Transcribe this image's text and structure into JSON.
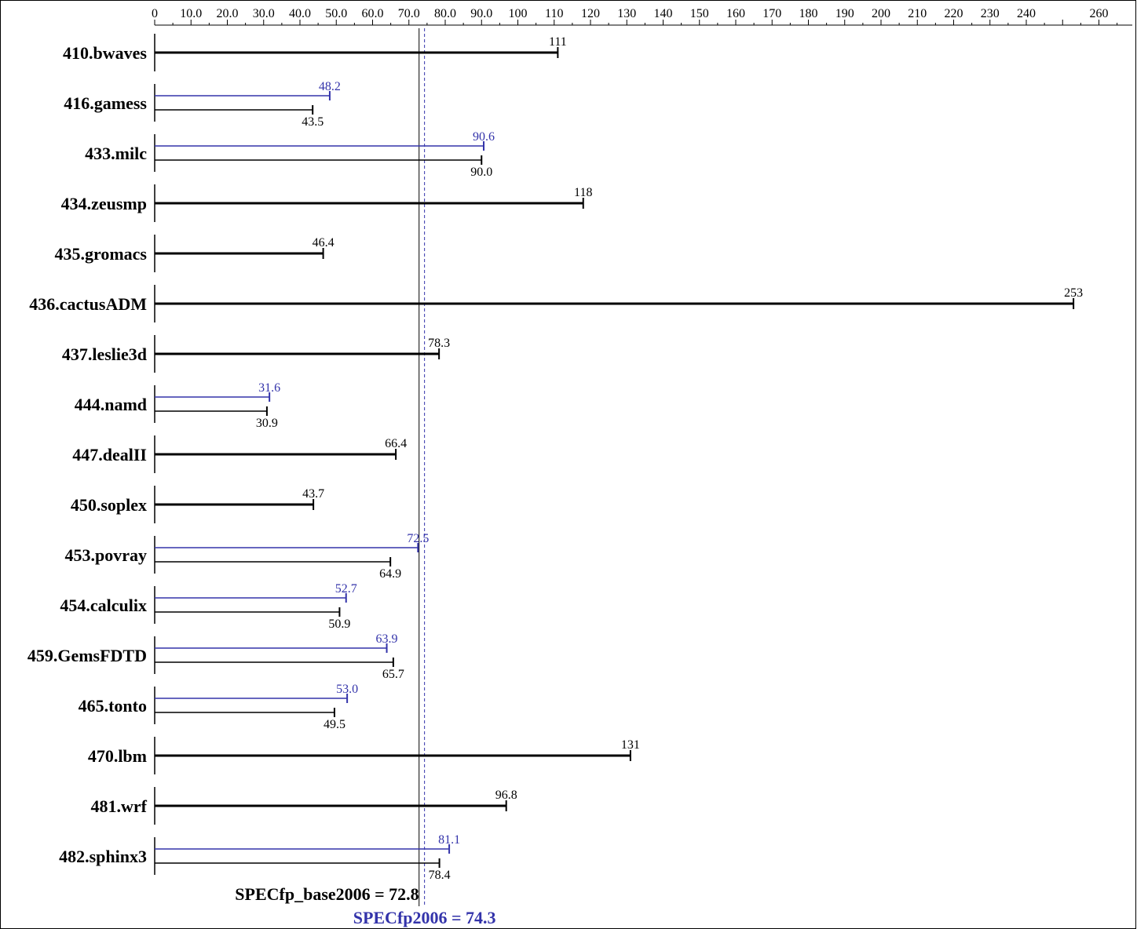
{
  "chart_data": {
    "type": "bar",
    "orientation": "horizontal",
    "x_ticks": [
      "0",
      "10.0",
      "20.0",
      "30.0",
      "40.0",
      "50.0",
      "60.0",
      "70.0",
      "80.0",
      "90.0",
      "100",
      "110",
      "120",
      "130",
      "140",
      "150",
      "160",
      "170",
      "180",
      "190",
      "200",
      "210",
      "220",
      "230",
      "240",
      "260"
    ],
    "xlim": [
      0,
      260
    ],
    "categories": [
      "410.bwaves",
      "416.gamess",
      "433.milc",
      "434.zeusmp",
      "435.gromacs",
      "436.cactusADM",
      "437.leslie3d",
      "444.namd",
      "447.dealII",
      "450.soplex",
      "453.povray",
      "454.calculix",
      "459.GemsFDTD",
      "465.tonto",
      "470.lbm",
      "481.wrf",
      "482.sphinx3"
    ],
    "series": [
      {
        "role": "peak",
        "color": "#3333aa",
        "values": [
          null,
          48.2,
          90.6,
          null,
          null,
          null,
          null,
          31.6,
          null,
          null,
          72.5,
          52.7,
          63.9,
          53.0,
          null,
          null,
          81.1
        ],
        "labels": [
          "",
          "48.2",
          "90.6",
          "",
          "",
          "",
          "",
          "31.6",
          "",
          "",
          "72.5",
          "52.7",
          "63.9",
          "53.0",
          "",
          "",
          "81.1"
        ]
      },
      {
        "role": "base",
        "color": "#000000",
        "values": [
          111,
          43.5,
          90.0,
          118,
          46.4,
          253,
          78.3,
          30.9,
          66.4,
          43.7,
          64.9,
          50.9,
          65.7,
          49.5,
          131,
          96.8,
          78.4
        ],
        "labels": [
          "111",
          "43.5",
          "90.0",
          "118",
          "46.4",
          "253",
          "78.3",
          "30.9",
          "66.4",
          "43.7",
          "64.9",
          "50.9",
          "65.7",
          "49.5",
          "131",
          "96.8",
          "78.4"
        ]
      }
    ],
    "reference_lines": [
      {
        "name": "base",
        "value": 72.8,
        "label": "SPECfp_base2006 = 72.8",
        "color": "#000000",
        "style": "solid"
      },
      {
        "name": "peak",
        "value": 74.3,
        "label": "SPECfp2006 = 74.3",
        "color": "#3333aa",
        "style": "dashed"
      }
    ],
    "grid": false
  }
}
